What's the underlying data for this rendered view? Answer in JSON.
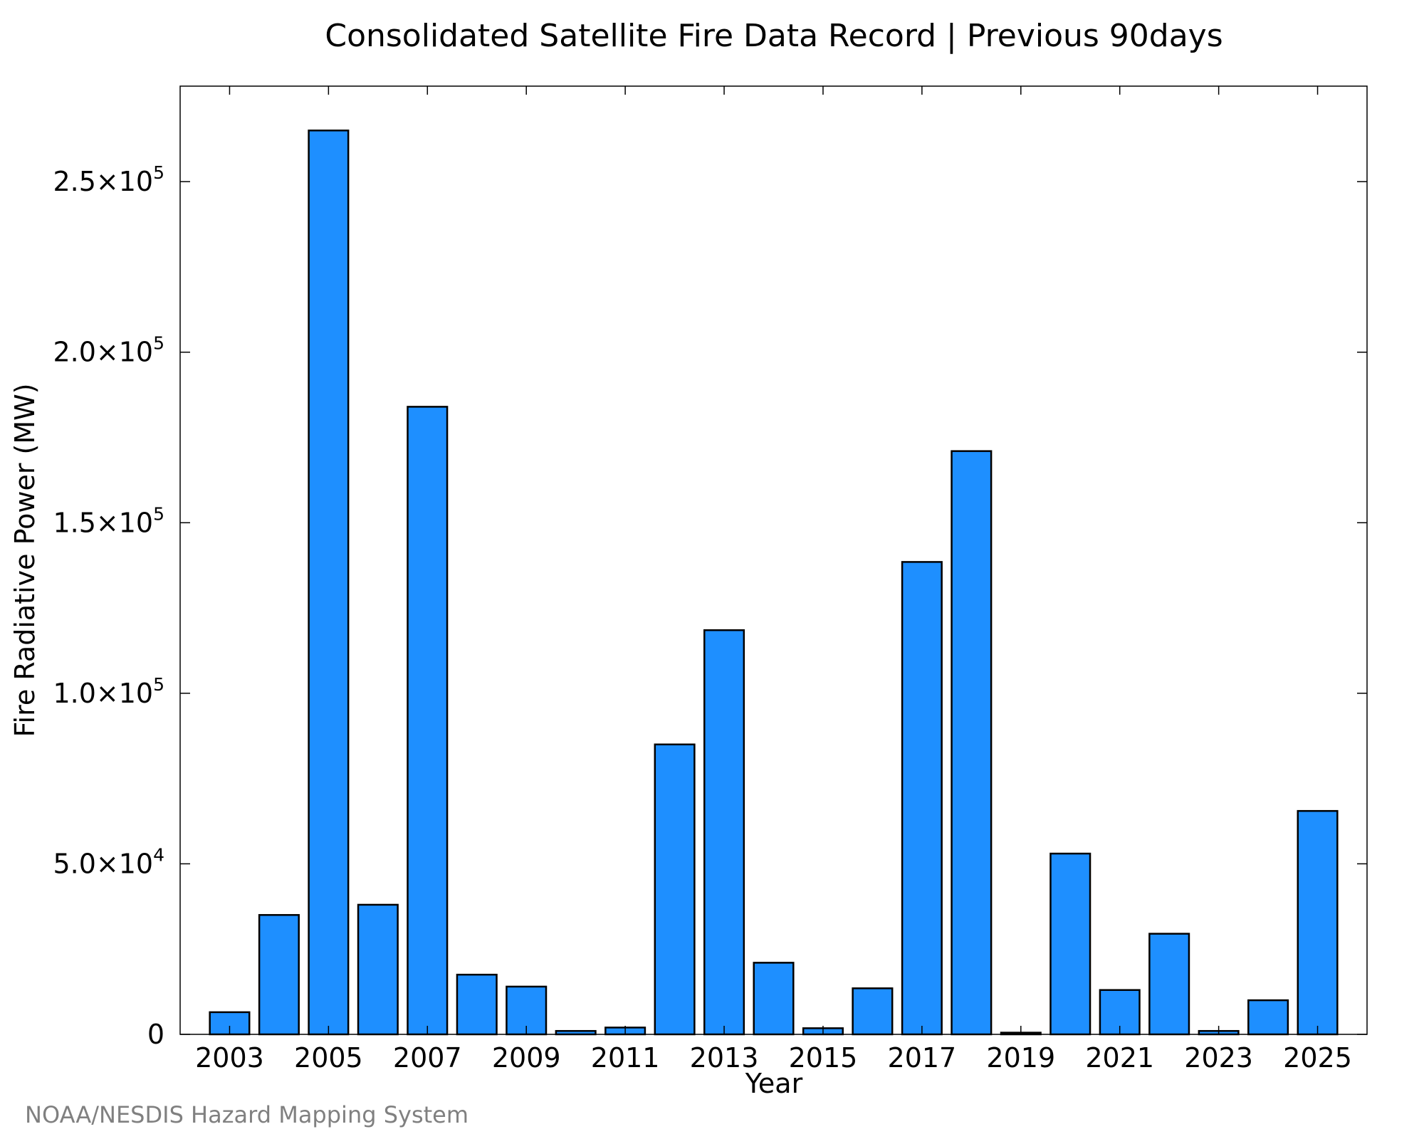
{
  "chart_data": {
    "type": "bar",
    "title": "Consolidated Satellite Fire Data Record | Previous 90days",
    "xlabel": "Year",
    "ylabel": "Fire Radiative Power (MW)",
    "categories": [
      "2003",
      "2004",
      "2005",
      "2006",
      "2007",
      "2008",
      "2009",
      "2010",
      "2011",
      "2012",
      "2013",
      "2014",
      "2015",
      "2016",
      "2017",
      "2018",
      "2019",
      "2020",
      "2021",
      "2022",
      "2023",
      "2024",
      "2025"
    ],
    "values": [
      6500,
      35000,
      265000,
      38000,
      184000,
      17500,
      14000,
      1000,
      2000,
      85000,
      118500,
      21000,
      1800,
      13500,
      138500,
      171000,
      500,
      53000,
      13000,
      29500,
      1000,
      10000,
      65500
    ],
    "xtick_labels": [
      "2003",
      "2005",
      "2007",
      "2009",
      "2011",
      "2013",
      "2015",
      "2017",
      "2019",
      "2021",
      "2023",
      "2025"
    ],
    "yticks": [
      {
        "value": 0,
        "mantissa": "0",
        "exponent": ""
      },
      {
        "value": 50000,
        "mantissa": "5.0×10",
        "exponent": "4"
      },
      {
        "value": 100000,
        "mantissa": "1.0×10",
        "exponent": "5"
      },
      {
        "value": 150000,
        "mantissa": "1.5×10",
        "exponent": "5"
      },
      {
        "value": 200000,
        "mantissa": "2.0×10",
        "exponent": "5"
      },
      {
        "value": 250000,
        "mantissa": "2.5×10",
        "exponent": "5"
      }
    ],
    "ylim": [
      0,
      278000
    ],
    "xlim": [
      2002.0,
      2026.0
    ],
    "grid": false,
    "legend": "none",
    "bar_color": "#1e8fff",
    "bar_edge_color": "#000000"
  },
  "credit": "NOAA/NESDIS Hazard Mapping System"
}
